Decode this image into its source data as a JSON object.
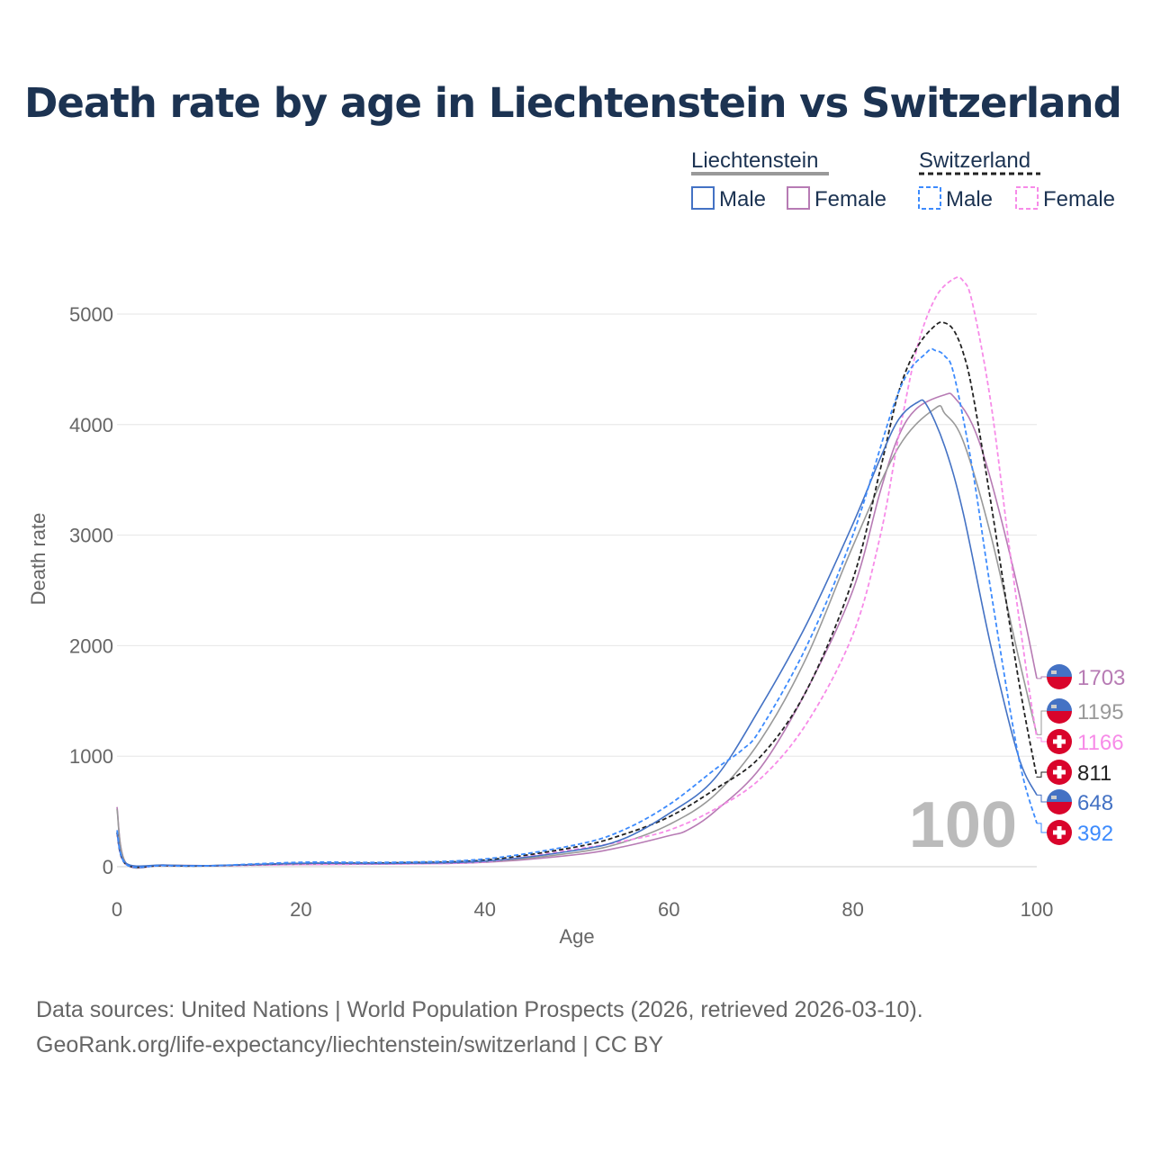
{
  "chart_data": {
    "type": "line",
    "title": "Death rate by age in Liechtenstein vs Switzerland",
    "xlabel": "Age",
    "ylabel": "Death rate",
    "xlim": [
      0,
      100
    ],
    "ylim": [
      0,
      5000
    ],
    "xticks": [
      "0",
      "20",
      "40",
      "60",
      "80",
      "100"
    ],
    "yticks": [
      "0",
      "1000",
      "2000",
      "3000",
      "4000",
      "5000"
    ],
    "legend": {
      "groups": [
        "Liechtenstein",
        "Switzerland"
      ],
      "items": [
        "Male",
        "Female",
        "Male",
        "Female"
      ],
      "placement": "top-right"
    },
    "watermark": "100",
    "series": [
      {
        "name": "Liechtenstein Female",
        "country": "li",
        "color": "#b77bb4",
        "dash": false,
        "end_label": "1703",
        "x": [
          0,
          1,
          5,
          10,
          20,
          30,
          40,
          50,
          55,
          60,
          62,
          65,
          70,
          75,
          80,
          83,
          85,
          87,
          90,
          91,
          93,
          95,
          98,
          100
        ],
        "y": [
          540,
          30,
          15,
          10,
          20,
          25,
          40,
          110,
          180,
          280,
          330,
          500,
          900,
          1600,
          2500,
          3400,
          3900,
          4150,
          4270,
          4250,
          4000,
          3500,
          2500,
          1703
        ]
      },
      {
        "name": "Liechtenstein Total",
        "country": "li",
        "color": "#999999",
        "dash": false,
        "end_label": "1195",
        "x": [
          0,
          1,
          5,
          10,
          20,
          30,
          40,
          50,
          55,
          60,
          65,
          70,
          75,
          80,
          85,
          89,
          90,
          92,
          95,
          98,
          100
        ],
        "y": [
          520,
          30,
          15,
          10,
          25,
          30,
          45,
          130,
          220,
          380,
          650,
          1150,
          1900,
          2900,
          3800,
          4150,
          4100,
          3850,
          3000,
          1900,
          1195
        ]
      },
      {
        "name": "Switzerland Female",
        "country": "ch",
        "color": "#f78be8",
        "dash": true,
        "end_label": "1166",
        "x": [
          0,
          1,
          5,
          10,
          20,
          30,
          40,
          50,
          55,
          60,
          65,
          70,
          75,
          80,
          83,
          85,
          87,
          89,
          91,
          92,
          93,
          95,
          97,
          99,
          100
        ],
        "y": [
          300,
          20,
          10,
          8,
          20,
          25,
          45,
          160,
          230,
          330,
          520,
          800,
          1300,
          2100,
          3000,
          3900,
          4700,
          5150,
          5320,
          5300,
          5100,
          4200,
          2900,
          1700,
          1166
        ]
      },
      {
        "name": "Switzerland Total",
        "country": "ch",
        "color": "#222222",
        "dash": true,
        "end_label": "811",
        "x": [
          0,
          1,
          5,
          10,
          20,
          30,
          40,
          50,
          55,
          60,
          65,
          70,
          75,
          80,
          83,
          85,
          87,
          89,
          90,
          91,
          92,
          93,
          95,
          98,
          100
        ],
        "y": [
          310,
          20,
          10,
          8,
          30,
          35,
          60,
          180,
          290,
          450,
          700,
          1000,
          1600,
          2600,
          3600,
          4300,
          4700,
          4900,
          4920,
          4850,
          4650,
          4300,
          3300,
          1700,
          811
        ]
      },
      {
        "name": "Liechtenstein Male",
        "country": "li",
        "color": "#4472c4",
        "dash": false,
        "end_label": "648",
        "x": [
          0,
          1,
          5,
          10,
          20,
          30,
          40,
          50,
          55,
          60,
          65,
          70,
          75,
          80,
          83,
          85,
          87,
          88,
          90,
          92,
          95,
          98,
          100
        ],
        "y": [
          300,
          30,
          15,
          10,
          30,
          30,
          50,
          150,
          250,
          480,
          800,
          1450,
          2200,
          3100,
          3700,
          4050,
          4200,
          4180,
          3800,
          3200,
          2000,
          1000,
          648
        ]
      },
      {
        "name": "Switzerland Male",
        "country": "ch",
        "color": "#3d8bfd",
        "dash": true,
        "end_label": "392",
        "x": [
          0,
          1,
          5,
          10,
          20,
          30,
          40,
          50,
          55,
          60,
          65,
          68,
          70,
          75,
          80,
          85,
          88,
          89,
          90,
          91,
          93,
          95,
          98,
          100
        ],
        "y": [
          330,
          20,
          10,
          8,
          40,
          40,
          70,
          200,
          330,
          560,
          880,
          1060,
          1250,
          2000,
          3000,
          4300,
          4650,
          4670,
          4620,
          4450,
          3600,
          2500,
          1000,
          392
        ]
      }
    ]
  },
  "source_lines": [
    "Data sources: United Nations | World Population Prospects (2026, retrieved 2026-03-10).",
    "GeoRank.org/life-expectancy/liechtenstein/switzerland | CC BY"
  ]
}
